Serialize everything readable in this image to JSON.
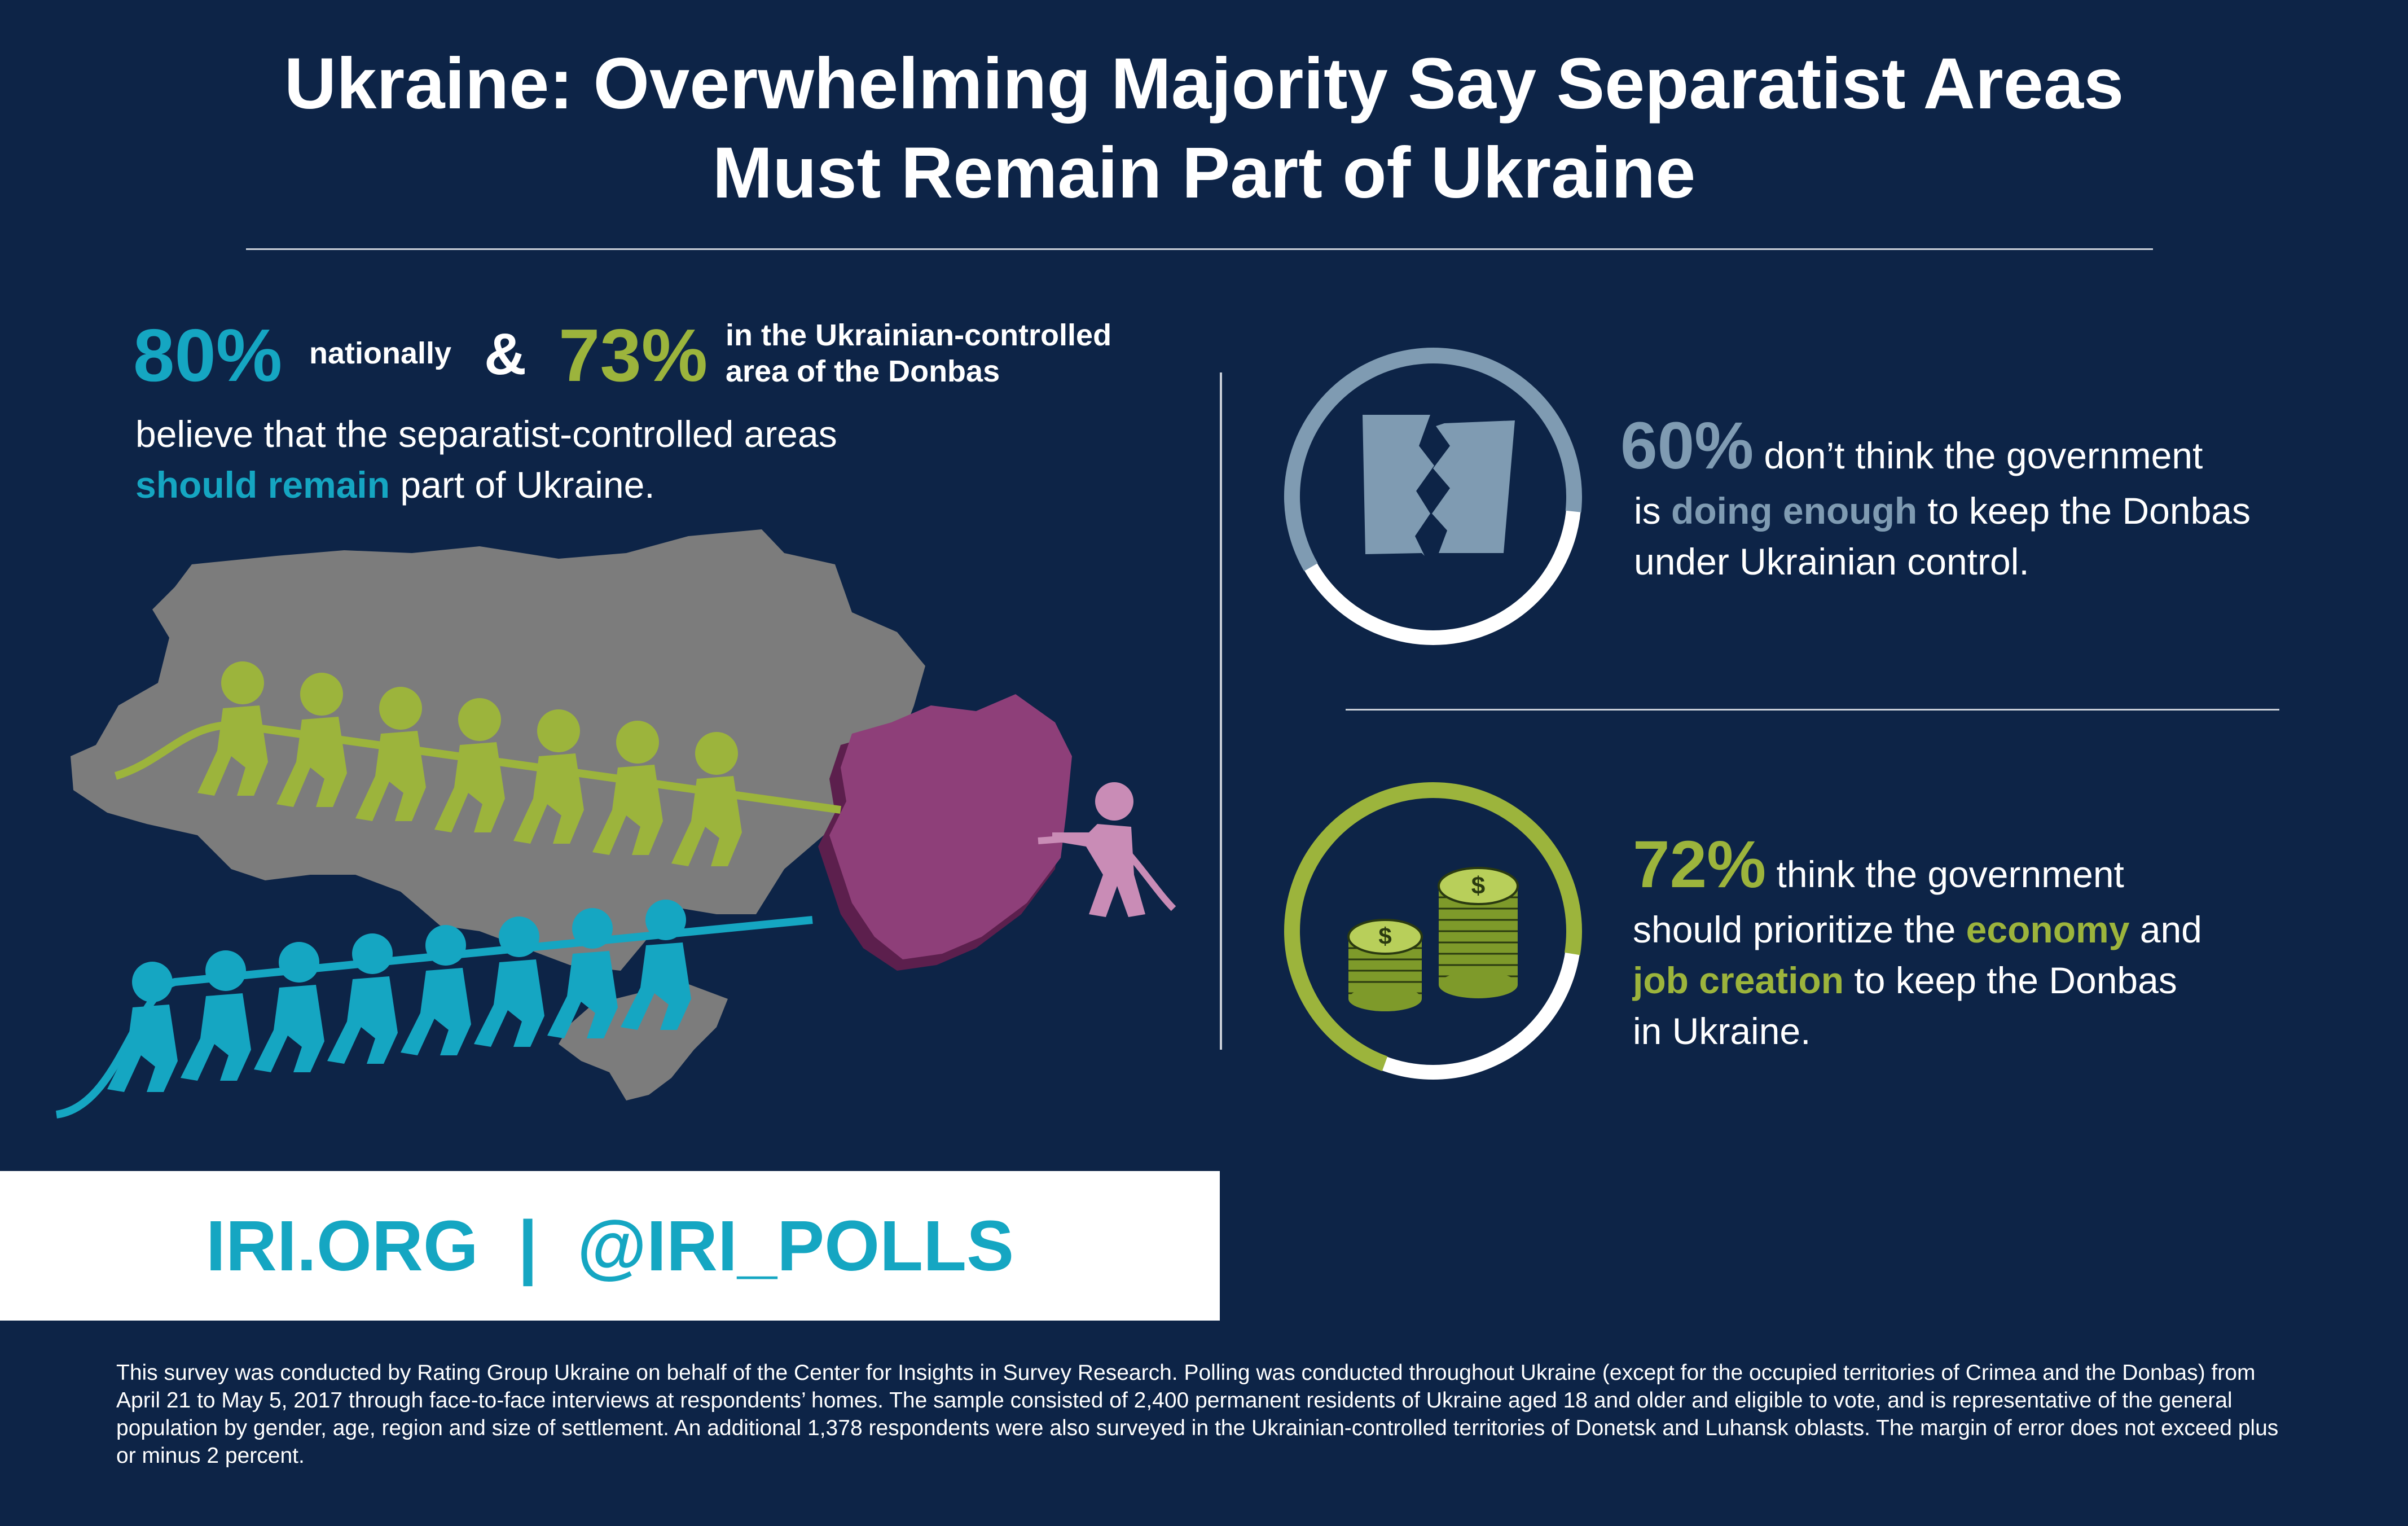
{
  "title": {
    "line1": "Ukraine: Overwhelming Majority Say Separatist Areas",
    "line2": "Must Remain Part of Ukraine"
  },
  "left_stat": {
    "pct_national": "80%",
    "label_national": "nationally",
    "ampersand": "&",
    "pct_donbas": "73%",
    "label_donbas_line1": "in the Ukrainian-controlled",
    "label_donbas_line2": "area of the Donbas",
    "text_line1": "believe that the separatist-controlled areas",
    "text_emphasis": "should remain",
    "text_line2_rest": " part of Ukraine."
  },
  "stat_60": {
    "pct": "60%",
    "text_a": " don’t think the government",
    "text_b_pre": "is ",
    "text_b_emphasis": "doing enough",
    "text_b_post": " to keep the Donbas",
    "text_c": "under Ukrainian control.",
    "ring_fraction": 0.6,
    "icon": "torn-paper-icon"
  },
  "stat_72": {
    "pct": "72%",
    "text_a": " think the government",
    "text_b_pre": "should prioritize the ",
    "text_b_emphasis": "economy",
    "text_b_post": " and",
    "text_c_emphasis": "job creation",
    "text_c_post": " to keep the Donbas",
    "text_d": "in Ukraine.",
    "ring_fraction": 0.72,
    "icon": "coin-stacks-icon",
    "coin_symbol": "$"
  },
  "footer": {
    "links": "IRI.ORG  |  @IRI_POLLS"
  },
  "footnote": "This survey was conducted by Rating Group Ukraine on behalf of the Center for Insights in Survey Research. Polling was conducted throughout Ukraine (except for the occupied territories of Crimea and the Donbas) from April 21 to May 5, 2017 through face-to-face interviews at respondents’ homes. The sample consisted of 2,400 permanent residents of Ukraine aged 18 and older and eligible to vote, and is representative of the general population by gender, age, region and size of settlement. An additional 1,378 respondents were also surveyed in the Ukrainian-controlled territories of Donetsk and Luhansk oblasts. The margin of error does not exceed plus or minus 2 percent.",
  "colors": {
    "background": "#0d2447",
    "cyan": "#15a6c2",
    "green": "#9cb43c",
    "slate": "#7f9bb2",
    "map_gray": "#7c7c7c",
    "donbas_purple": "#8e3f79",
    "figure_pink": "#c98cb6"
  },
  "illustration": {
    "map": "ukraine-map-icon",
    "green_team": "green-tug-of-war-figures",
    "cyan_team": "cyan-tug-of-war-figures",
    "pink_figure": "pink-figure-icon"
  }
}
